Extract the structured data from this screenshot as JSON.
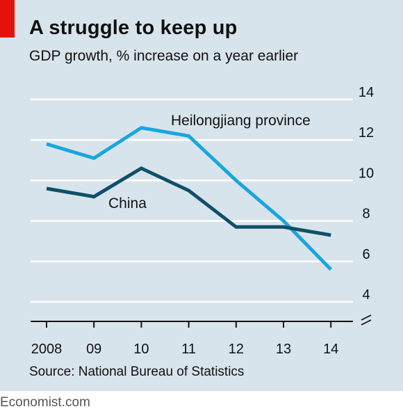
{
  "title": "A struggle to keep up",
  "subtitle": "GDP growth, % increase on a year earlier",
  "source": "Source: National Bureau of Statistics",
  "brand": "Economist.com",
  "colors": {
    "background": "#d8e4eb",
    "accent_red": "#e3120b",
    "china": "#0f4f6b",
    "heilongjiang": "#19a6df",
    "grid": "#ffffff"
  },
  "chart_data": {
    "type": "line",
    "title": "A struggle to keep up",
    "ylabel": "GDP growth, % increase on a year earlier",
    "x": [
      "2008",
      "09",
      "10",
      "11",
      "12",
      "13",
      "14"
    ],
    "ylim": [
      4,
      14
    ],
    "yticks": [
      4,
      6,
      8,
      10,
      12,
      14
    ],
    "y_axis_position": "right",
    "y_axis_break": true,
    "grid": true,
    "legend": "direct-labels",
    "series": [
      {
        "name": "Heilongjiang province",
        "color": "#19a6df",
        "values": [
          11.8,
          11.1,
          12.6,
          12.2,
          10.0,
          8.0,
          5.6
        ]
      },
      {
        "name": "China",
        "color": "#0f4f6b",
        "values": [
          9.6,
          9.2,
          10.6,
          9.5,
          7.7,
          7.7,
          7.3
        ]
      }
    ]
  }
}
